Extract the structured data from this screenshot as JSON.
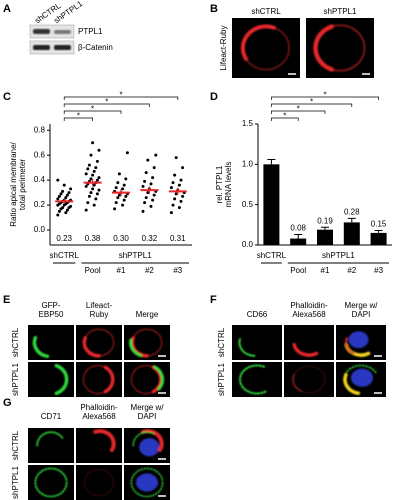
{
  "panel_letters": [
    "A",
    "B",
    "C",
    "D",
    "E",
    "F",
    "G"
  ],
  "panel_a": {
    "lanes": [
      "shCTRL",
      "shPTPL1"
    ],
    "bands": [
      "PTPL1",
      "β-Catenin"
    ]
  },
  "panel_b": {
    "columns": [
      "shCTRL",
      "shPTPL1"
    ],
    "row_label": "Lifeact-Ruby"
  },
  "chart_data": [
    {
      "type": "dot",
      "ylabel": [
        "Ratio apical membrane/",
        "total perimeter"
      ],
      "categories": [
        "shCTRL",
        "Pool",
        "#1",
        "#2",
        "#3"
      ],
      "group_label": "shPTPL1",
      "values": [
        0.23,
        0.38,
        0.3,
        0.32,
        0.31
      ],
      "value_labels": [
        "0.23",
        "0.38",
        "0.30",
        "0.32",
        "0.31"
      ],
      "errors": [
        0.02,
        0.03,
        0.03,
        0.03,
        0.03
      ],
      "points": [
        [
          0.12,
          0.14,
          0.15,
          0.16,
          0.17,
          0.18,
          0.18,
          0.19,
          0.2,
          0.2,
          0.21,
          0.21,
          0.22,
          0.22,
          0.23,
          0.23,
          0.24,
          0.24,
          0.25,
          0.26,
          0.27,
          0.28,
          0.29,
          0.3,
          0.31,
          0.33,
          0.36,
          0.4
        ],
        [
          0.16,
          0.2,
          0.22,
          0.25,
          0.27,
          0.29,
          0.3,
          0.32,
          0.33,
          0.35,
          0.36,
          0.37,
          0.38,
          0.39,
          0.4,
          0.41,
          0.42,
          0.44,
          0.45,
          0.47,
          0.49,
          0.5,
          0.52,
          0.55,
          0.6,
          0.64,
          0.7
        ],
        [
          0.17,
          0.2,
          0.22,
          0.24,
          0.26,
          0.27,
          0.28,
          0.29,
          0.3,
          0.31,
          0.33,
          0.34,
          0.36,
          0.38,
          0.41,
          0.45,
          0.62
        ],
        [
          0.15,
          0.19,
          0.22,
          0.24,
          0.26,
          0.28,
          0.3,
          0.31,
          0.33,
          0.35,
          0.37,
          0.39,
          0.42,
          0.46,
          0.5,
          0.56,
          0.6
        ],
        [
          0.14,
          0.18,
          0.2,
          0.23,
          0.25,
          0.27,
          0.29,
          0.3,
          0.32,
          0.34,
          0.36,
          0.38,
          0.4,
          0.44,
          0.5,
          0.58
        ]
      ],
      "color": "#000000",
      "mean_color": "#e8272a",
      "ylim": [
        -0.12,
        0.85
      ],
      "yticks": [
        {
          "value": 0,
          "label": "0.0"
        },
        0.2,
        0.4,
        0.6,
        0.8
      ],
      "significance": [
        "*",
        "*",
        "*",
        "*"
      ]
    },
    {
      "type": "bar",
      "ylabel": [
        "rel. PTPL1",
        "mRNA levels"
      ],
      "categories": [
        "shCTRL",
        "Pool",
        "#1",
        "#2",
        "#3"
      ],
      "group_label": "shPTPL1",
      "values": [
        1.0,
        0.08,
        0.19,
        0.28,
        0.15
      ],
      "value_labels": [
        null,
        "0.08",
        "0.19",
        "0.28",
        "0.15"
      ],
      "errors": [
        0.06,
        0.05,
        0.03,
        0.05,
        0.03
      ],
      "color": "#000000",
      "ylim": [
        0,
        1.5
      ],
      "yticks": [
        {
          "value": 0,
          "label": "0.0"
        },
        0.5,
        {
          "value": 1,
          "label": "1.0"
        },
        1.5
      ],
      "significance": [
        "*",
        "*",
        "*",
        "*"
      ]
    }
  ],
  "panel_e": {
    "columns": [
      [
        "GFP-",
        "EBP50"
      ],
      [
        "Lifeact-",
        "Ruby"
      ],
      [
        "Merge"
      ]
    ],
    "rows": [
      "shCTRL",
      "shPTPL1"
    ]
  },
  "panel_f": {
    "columns": [
      [
        "CD66"
      ],
      [
        "Phalloidin-",
        "Alexa568"
      ],
      [
        "Merge w/",
        "DAPI"
      ]
    ],
    "rows": [
      "shCTRL",
      "shPTPL1"
    ]
  },
  "panel_g": {
    "columns": [
      [
        "CD71"
      ],
      [
        "Phalloidin-",
        "Alexa568"
      ],
      [
        "Merge w/",
        "DAPI"
      ]
    ],
    "rows": [
      "shCTRL",
      "shPTPL1"
    ]
  }
}
